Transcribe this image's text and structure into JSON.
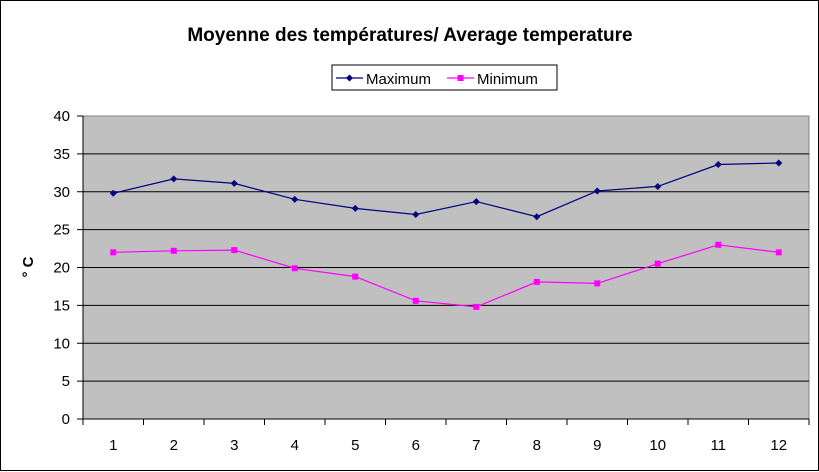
{
  "chart_data": {
    "type": "line",
    "title": "Moyenne des températures/ Average temperature",
    "xlabel": "",
    "ylabel": "° C",
    "categories": [
      "1",
      "2",
      "3",
      "4",
      "5",
      "6",
      "7",
      "8",
      "9",
      "10",
      "11",
      "12"
    ],
    "ylim": [
      0,
      40
    ],
    "yticks": [
      0,
      5,
      10,
      15,
      20,
      25,
      30,
      35,
      40
    ],
    "grid": true,
    "legend_position": "top-center",
    "plot_background": "#c0c0c0",
    "series": [
      {
        "name": "Maximum",
        "color": "#000080",
        "marker": "diamond",
        "values": [
          29.8,
          31.7,
          31.1,
          29.0,
          27.8,
          27.0,
          28.7,
          26.7,
          30.1,
          30.7,
          33.6,
          33.8
        ]
      },
      {
        "name": "Minimum",
        "color": "#ff00ff",
        "marker": "square",
        "values": [
          22.0,
          22.2,
          22.3,
          19.9,
          18.8,
          15.6,
          14.8,
          18.1,
          17.9,
          20.5,
          23.0,
          22.0
        ]
      }
    ]
  }
}
